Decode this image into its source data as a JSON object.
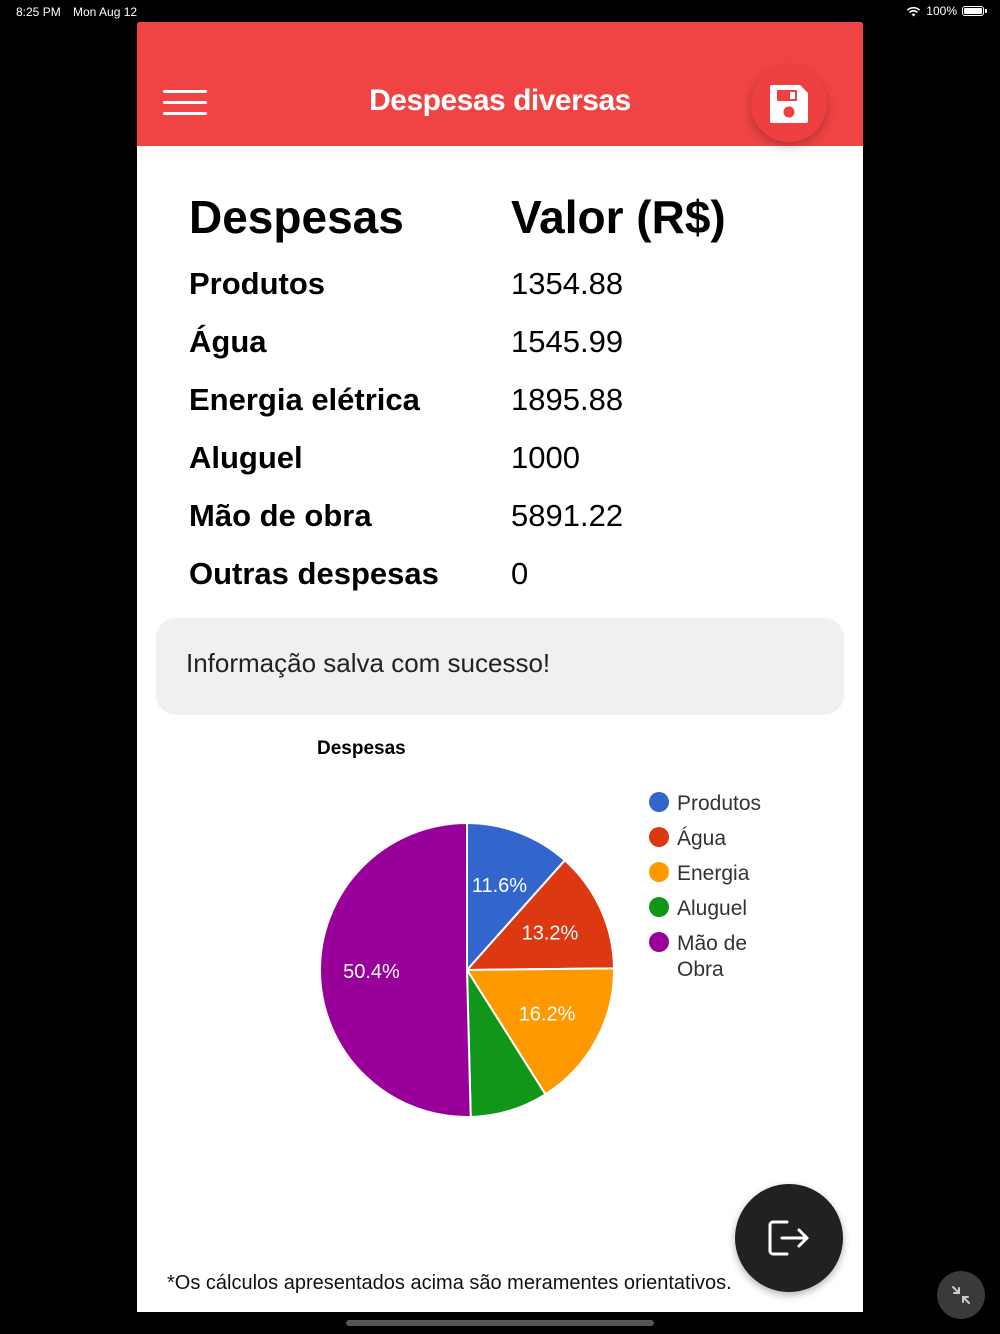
{
  "status": {
    "time": "8:25 PM",
    "date": "Mon Aug 12",
    "battery": "100%"
  },
  "header": {
    "title": "Despesas diversas",
    "menu_icon": "hamburger-icon",
    "save_icon": "floppy-disk-icon"
  },
  "table": {
    "header_name": "Despesas",
    "header_value": "Valor (R$)",
    "rows": [
      {
        "name": "Produtos",
        "value": "1354.88"
      },
      {
        "name": "Água",
        "value": "1545.99"
      },
      {
        "name": "Energia elétrica",
        "value": "1895.88"
      },
      {
        "name": "Aluguel",
        "value": "1000"
      },
      {
        "name": "Mão de obra",
        "value": "5891.22"
      },
      {
        "name": "Outras despesas",
        "value": "0"
      }
    ]
  },
  "toast": {
    "message": "Informação salva com sucesso!"
  },
  "chart_data": {
    "type": "pie",
    "title": "Despesas",
    "categories": [
      "Produtos",
      "Água",
      "Energia",
      "Aluguel",
      "Mão de Obra"
    ],
    "values": [
      1354.88,
      1545.99,
      1895.88,
      1000,
      5891.22
    ],
    "percent_labels": [
      "11.6%",
      "13.2%",
      "16.2%",
      "",
      "50.4%"
    ],
    "colors": [
      "#3366cc",
      "#dc3912",
      "#ff9900",
      "#109618",
      "#990099"
    ],
    "legend": "right"
  },
  "footer": {
    "note": "*Os cálculos apresentados acima são meramentes orientativos.",
    "exit_icon": "exit-icon",
    "collapse_icon": "collapse-icon"
  }
}
